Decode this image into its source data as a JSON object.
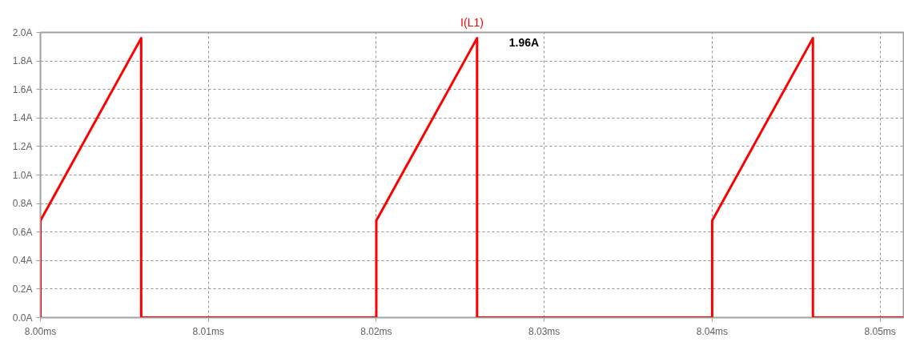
{
  "chart_data": {
    "type": "line",
    "xlim": [
      8.0,
      8.0514
    ],
    "ylim": [
      0,
      2.0
    ],
    "xticks": [
      {
        "value": 8.0,
        "label": "8.00ms"
      },
      {
        "value": 8.01,
        "label": "8.01ms"
      },
      {
        "value": 8.02,
        "label": "8.02ms"
      },
      {
        "value": 8.03,
        "label": "8.03ms"
      },
      {
        "value": 8.04,
        "label": "8.04ms"
      },
      {
        "value": 8.05,
        "label": "8.05ms"
      }
    ],
    "yticks": [
      {
        "value": 0,
        "label": "0.0A"
      },
      {
        "value": 0.2,
        "label": "0.2A"
      },
      {
        "value": 0.4,
        "label": "0.4A"
      },
      {
        "value": 0.6,
        "label": "0.6A"
      },
      {
        "value": 0.8,
        "label": "0.8A"
      },
      {
        "value": 1.0,
        "label": "1.0A"
      },
      {
        "value": 1.2,
        "label": "1.2A"
      },
      {
        "value": 1.4,
        "label": "1.4A"
      },
      {
        "value": 1.6,
        "label": "1.6A"
      },
      {
        "value": 1.8,
        "label": "1.8A"
      },
      {
        "value": 2.0,
        "label": "2.0A"
      }
    ],
    "series": [
      {
        "name": "I(L1)",
        "color": "#ff0000",
        "x": [
          8.0,
          8.0,
          8.006,
          8.006,
          8.02,
          8.02,
          8.026,
          8.026,
          8.04,
          8.04,
          8.046,
          8.046,
          8.0514
        ],
        "values": [
          0,
          0.68,
          1.96,
          0,
          0,
          0.68,
          1.96,
          0,
          0,
          0.68,
          1.96,
          0,
          0
        ]
      }
    ],
    "annotations": [
      {
        "text": "1.96A",
        "x": 8.026,
        "y": 1.96
      }
    ],
    "grid": true,
    "marker": "none",
    "line_style": "solid"
  }
}
